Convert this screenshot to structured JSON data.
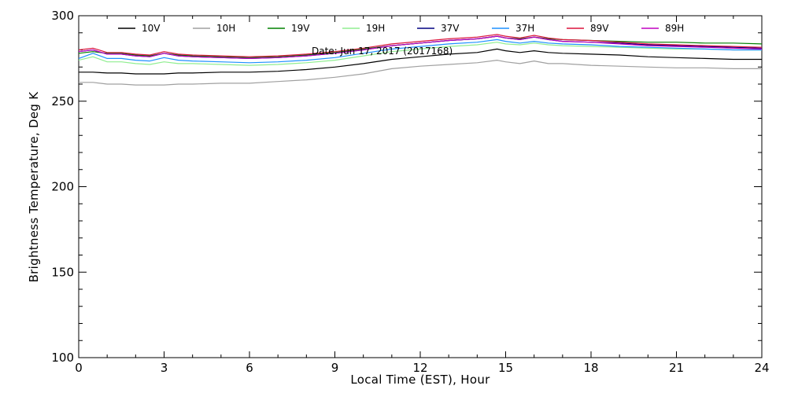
{
  "chart_data": {
    "type": "line",
    "title": "",
    "annotation": "Date: Jun 17, 2017 (2017168)",
    "xlabel": "Local Time (EST), Hour",
    "ylabel": "Brightness Temperature, Deg K",
    "xlim": [
      0,
      24
    ],
    "ylim": [
      100,
      300
    ],
    "xticks": [
      "0",
      "3",
      "6",
      "9",
      "12",
      "15",
      "18",
      "21",
      "24"
    ],
    "yticks": [
      "100",
      "150",
      "200",
      "250",
      "300"
    ],
    "grid": false,
    "legend_position": "top",
    "x": [
      0,
      0.5,
      1,
      1.5,
      2,
      2.5,
      3,
      3.5,
      4,
      5,
      6,
      7,
      8,
      9,
      10,
      11,
      12,
      13,
      14,
      14.7,
      15,
      15.5,
      16,
      16.5,
      17,
      18,
      19,
      20,
      21,
      22,
      23,
      24
    ],
    "series": [
      {
        "name": "10V",
        "color": "#000000",
        "values": [
          267,
          267,
          266.5,
          266.5,
          266,
          266,
          266,
          266.5,
          266.5,
          267,
          267,
          267.5,
          268.5,
          270,
          272,
          274.5,
          276,
          277.5,
          278.5,
          280.5,
          279.5,
          278.5,
          279.5,
          278.5,
          278,
          277.5,
          277,
          276,
          275.5,
          275,
          274.5,
          274.5
        ]
      },
      {
        "name": "10H",
        "color": "#a0a0a0",
        "values": [
          261,
          261,
          260,
          260,
          259.5,
          259.5,
          259.5,
          260,
          260,
          260.5,
          260.5,
          261.5,
          262.5,
          264,
          266,
          269,
          270.5,
          271.5,
          272.5,
          274,
          273,
          272,
          273.5,
          272,
          272,
          271,
          270.5,
          270,
          269.5,
          269.5,
          269,
          269
        ]
      },
      {
        "name": "19V",
        "color": "#008000",
        "values": [
          278,
          279,
          278,
          278,
          277,
          276.5,
          278,
          277,
          276.5,
          276,
          275.5,
          276,
          277,
          278.5,
          280.5,
          282.5,
          284,
          285.5,
          286.5,
          288,
          287,
          286.5,
          287.5,
          286.5,
          286,
          285.5,
          285,
          284.5,
          284.5,
          284,
          284,
          283.5
        ]
      },
      {
        "name": "19H",
        "color": "#90ee90",
        "values": [
          274,
          276,
          273,
          273,
          272,
          271.5,
          273,
          272,
          272,
          271.5,
          271,
          271.5,
          272.5,
          274,
          276.5,
          279,
          280.5,
          282,
          283,
          284.5,
          283.5,
          283,
          284,
          283,
          282.5,
          282,
          281.5,
          281,
          280.5,
          280.5,
          280,
          280
        ]
      },
      {
        "name": "37V",
        "color": "#000080",
        "values": [
          279,
          280,
          277.5,
          277.5,
          276.5,
          276,
          278,
          276.5,
          276,
          275.5,
          275,
          275.5,
          276.5,
          278,
          280,
          282.5,
          284,
          285.5,
          286.5,
          288,
          287,
          286,
          287.5,
          286,
          285,
          284.5,
          284,
          283,
          282.5,
          282,
          281.5,
          281
        ]
      },
      {
        "name": "37H",
        "color": "#1e90ff",
        "values": [
          275,
          278,
          275,
          275,
          274,
          273.5,
          275.5,
          274,
          273.5,
          273,
          272.5,
          273,
          274,
          275.5,
          278,
          280.5,
          282,
          283.5,
          284.5,
          286,
          285,
          284,
          285,
          284,
          283.5,
          283,
          282,
          281.5,
          281,
          280.5,
          280,
          280
        ]
      },
      {
        "name": "89V",
        "color": "#dc143c",
        "values": [
          280,
          281,
          278.5,
          278.5,
          277.5,
          277,
          279,
          277.5,
          277,
          276.5,
          276,
          276.5,
          277.5,
          279,
          281,
          283.5,
          285,
          286.5,
          287.5,
          289,
          288,
          287,
          288.5,
          287,
          286,
          285.5,
          284.5,
          283.5,
          283,
          282.5,
          282,
          281.5
        ]
      },
      {
        "name": "89H",
        "color": "#c000c0",
        "values": [
          279,
          280,
          277.5,
          277.5,
          276.5,
          276,
          278,
          276.5,
          276,
          275.5,
          275,
          275.5,
          276.5,
          278,
          280,
          282.5,
          284,
          285.5,
          286.5,
          288,
          287,
          286,
          287.5,
          286,
          285,
          284.5,
          283.5,
          282.5,
          282,
          281.5,
          281,
          280.5
        ]
      }
    ]
  }
}
